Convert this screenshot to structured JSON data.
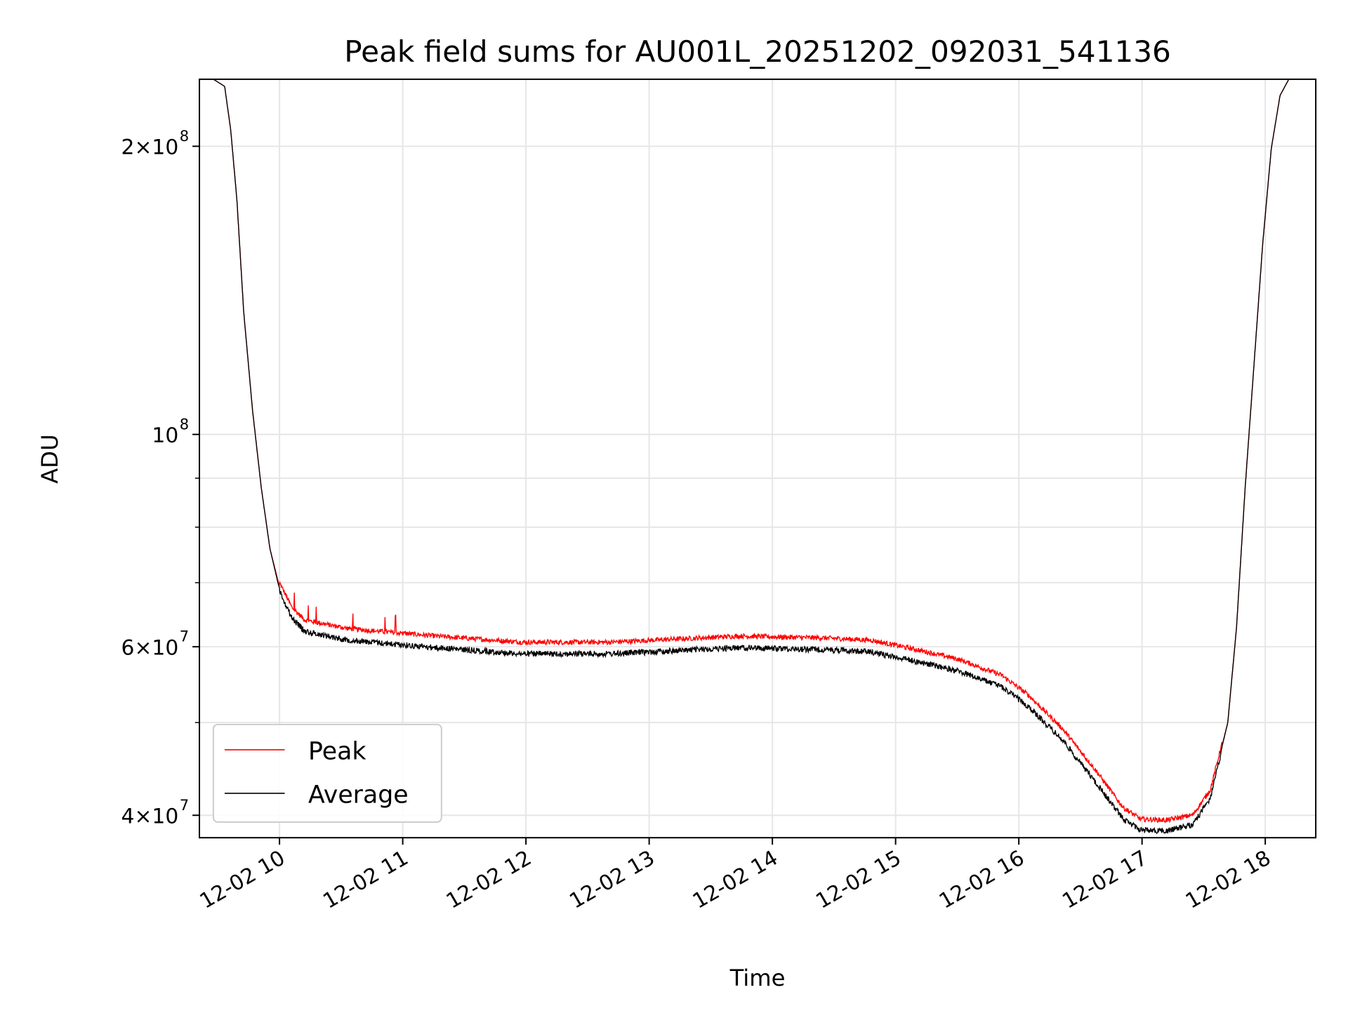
{
  "chart_data": {
    "type": "line",
    "title": "Peak field sums for AU001L_20251202_092031_541136",
    "xlabel": "Time",
    "ylabel": "ADU",
    "yscale": "log",
    "x_units": "hours of day 2025-12-02",
    "xlim": [
      9.35,
      18.41
    ],
    "ylim": [
      37900000,
      235000000
    ],
    "grid": true,
    "legend_position": "lower-left",
    "x_ticks": [
      {
        "value": 10,
        "label": "12-02 10"
      },
      {
        "value": 11,
        "label": "12-02 11"
      },
      {
        "value": 12,
        "label": "12-02 12"
      },
      {
        "value": 13,
        "label": "12-02 13"
      },
      {
        "value": 14,
        "label": "12-02 14"
      },
      {
        "value": 15,
        "label": "12-02 15"
      },
      {
        "value": 16,
        "label": "12-02 16"
      },
      {
        "value": 17,
        "label": "12-02 17"
      },
      {
        "value": 18,
        "label": "12-02 18"
      }
    ],
    "y_ticks": [
      {
        "value": 200000000,
        "base": "2×10",
        "exp": "8"
      },
      {
        "value": 100000000,
        "base": "10",
        "exp": "8"
      },
      {
        "value": 60000000,
        "base": "6×10",
        "exp": "7"
      },
      {
        "value": 40000000,
        "base": "4×10",
        "exp": "7"
      }
    ],
    "y_minor_ticks": [
      50000000,
      70000000,
      80000000,
      90000000
    ],
    "x": [
      9.35,
      9.463,
      9.555,
      9.604,
      9.654,
      9.71,
      9.781,
      9.852,
      9.922,
      9.993,
      10.099,
      10.205,
      10.558,
      11.265,
      11.972,
      12.678,
      13.385,
      13.739,
      14.445,
      14.799,
      15.152,
      15.505,
      15.859,
      16.071,
      16.353,
      16.636,
      16.848,
      16.989,
      17.201,
      17.413,
      17.555,
      17.696,
      17.767,
      17.837,
      17.908,
      17.979,
      18.049,
      18.12,
      18.191,
      18.41
    ],
    "series": [
      {
        "name": "Peak",
        "color": "#ff0000",
        "values": [
          235000000,
          235000000,
          231000000,
          208000000,
          176000000,
          134000000,
          106000000,
          88000000,
          76000000,
          69900000,
          65600000,
          63600000,
          62300000,
          61200000,
          60300000,
          60300000,
          60900000,
          61200000,
          60900000,
          60600000,
          59300000,
          57900000,
          55700000,
          53200000,
          49000000,
          44100000,
          40500000,
          39400000,
          39300000,
          39800000,
          42300000,
          50000000,
          62900000,
          88000000,
          118000000,
          158000000,
          199000000,
          226000000,
          235000000,
          235000000
        ]
      },
      {
        "name": "Average",
        "color": "#000000",
        "values": [
          235000000,
          235000000,
          231000000,
          208000000,
          176000000,
          134000000,
          106000000,
          88000000,
          76000000,
          69500000,
          64800000,
          62700000,
          61400000,
          60300000,
          59400000,
          59400000,
          60000000,
          60300000,
          60000000,
          59700000,
          58400000,
          57000000,
          54900000,
          52400000,
          48300000,
          43400000,
          39900000,
          38900000,
          38800000,
          39400000,
          42000000,
          50000000,
          62900000,
          88000000,
          118000000,
          158000000,
          199000000,
          226000000,
          235000000,
          235000000
        ]
      }
    ]
  }
}
